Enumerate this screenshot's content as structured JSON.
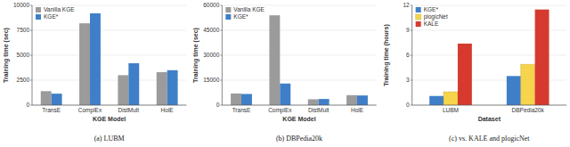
{
  "chart_data": [
    {
      "type": "bar",
      "title": "(a) LUBM",
      "x_label": "KGE Model",
      "y_label": "Training time (sec)",
      "categories": [
        "TransE",
        "ComplEx",
        "DistMult",
        "HolE"
      ],
      "series": [
        {
          "name": "Vanilla KGE",
          "color": "#9b9b9b",
          "values": [
            1400,
            8200,
            3000,
            3300
          ]
        },
        {
          "name": "KGE*",
          "color": "#3f7fc8",
          "values": [
            1150,
            9200,
            4200,
            3500
          ]
        }
      ],
      "ylim": [
        0,
        10000
      ],
      "yticks": [
        0,
        2500,
        5000,
        7500,
        10000
      ],
      "grid": true,
      "legend": "upper left"
    },
    {
      "type": "bar",
      "title": "(b) DBPedia20k",
      "x_label": "KGE Model",
      "y_label": "Training time (sec)",
      "categories": [
        "TransE",
        "ComplEx",
        "DistMult",
        "HolE"
      ],
      "series": [
        {
          "name": "Vanilla KGE",
          "color": "#9b9b9b",
          "values": [
            7000,
            54000,
            3500,
            6000
          ]
        },
        {
          "name": "KGE*",
          "color": "#3f7fc8",
          "values": [
            6700,
            13000,
            3700,
            5800
          ]
        }
      ],
      "ylim": [
        0,
        60000
      ],
      "yticks": [
        0,
        15000,
        30000,
        45000,
        60000
      ],
      "grid": true,
      "legend": "upper left"
    },
    {
      "type": "bar",
      "title": "(c) vs. KALE and plogicNet",
      "x_label": "Dataset",
      "y_label": "Training time (hours)",
      "categories": [
        "LUBM",
        "DBPedia20k"
      ],
      "series": [
        {
          "name": "KGE*",
          "color": "#3f7fc8",
          "values": [
            1.1,
            3.5
          ]
        },
        {
          "name": "plogicNet",
          "color": "#f6d44b",
          "values": [
            1.6,
            4.9
          ]
        },
        {
          "name": "KALE",
          "color": "#d63a2f",
          "values": [
            7.4,
            11.5
          ]
        }
      ],
      "ylim": [
        0,
        12
      ],
      "yticks": [
        0,
        3,
        6,
        9,
        12
      ],
      "grid": true,
      "legend": "upper left"
    }
  ]
}
